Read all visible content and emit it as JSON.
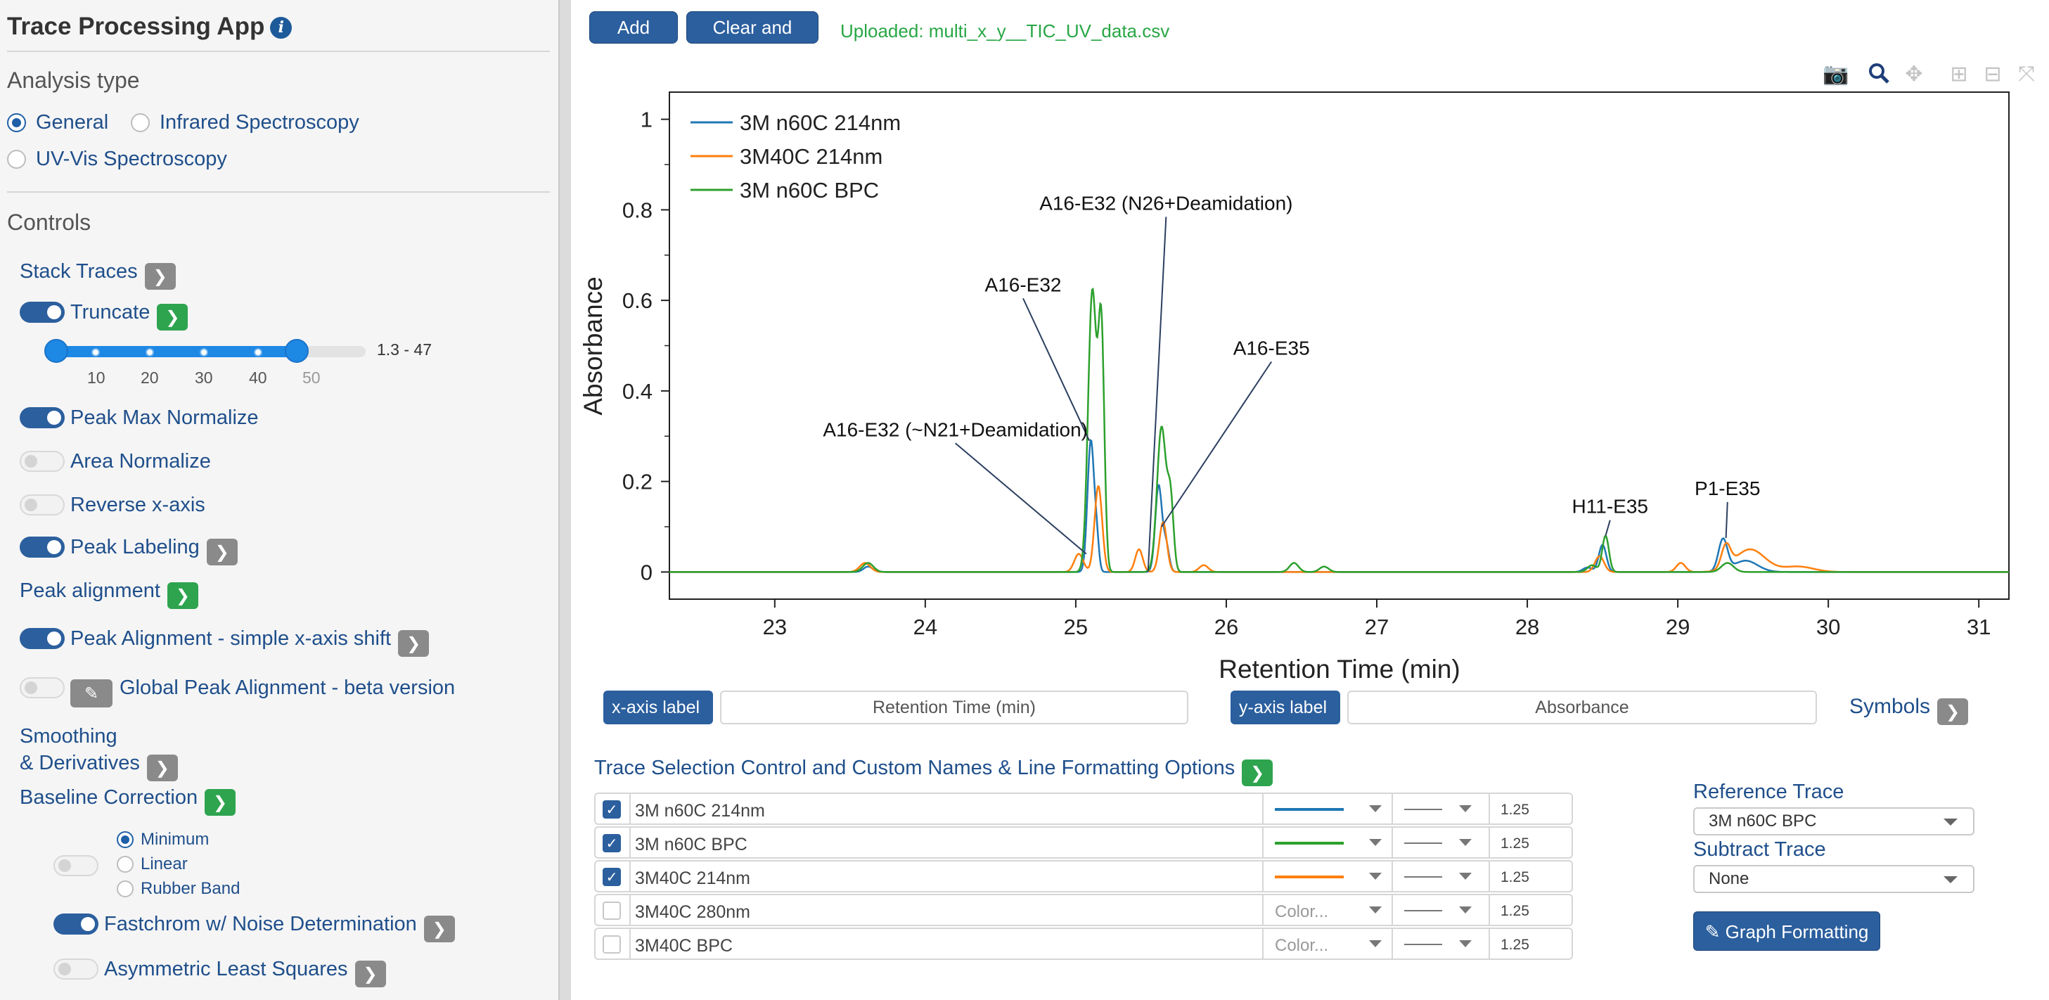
{
  "sidebar": {
    "title": "Trace Processing App",
    "analysis_type_heading": "Analysis type",
    "analysis_types": [
      "General",
      "Infrared Spectroscopy",
      "UV-Vis Spectroscopy"
    ],
    "analysis_selected": "General",
    "controls_heading": "Controls",
    "stack_traces": "Stack Traces",
    "truncate": "Truncate",
    "truncate_range": {
      "min": 1.3,
      "max": 47,
      "scale_max": 50,
      "ticks": [
        "10",
        "20",
        "30",
        "40",
        "50"
      ]
    },
    "truncate_value": "1.3 - 47",
    "peak_max_normalize": "Peak Max Normalize",
    "area_normalize": "Area Normalize",
    "reverse_x_axis": "Reverse x-axis",
    "peak_labeling": "Peak Labeling",
    "peak_alignment": "Peak alignment",
    "peak_alignment_simple": "Peak Alignment - simple x-axis shift",
    "global_peak_alignment": "Global Peak Alignment - beta version",
    "smoothing_line1": "Smoothing",
    "smoothing_line2": "& Derivatives",
    "baseline_correction": "Baseline Correction",
    "baseline_options": [
      "Minimum",
      "Linear",
      "Rubber Band"
    ],
    "baseline_selected": "Minimum",
    "fastchrom": "Fastchrom w/ Noise Determination",
    "asymmetric_least_squares": "Asymmetric Least Squares",
    "toggles": {
      "truncate": true,
      "peak_max_normalize": true,
      "area_normalize": false,
      "reverse_x_axis": false,
      "peak_labeling": true,
      "peak_alignment_simple": true,
      "global_peak_alignment": false,
      "baseline": false,
      "fastchrom": true,
      "asymmetric_least_squares": false
    }
  },
  "topbar": {
    "add_files": "Add File(s)",
    "clear_reset": "Clear and Reset",
    "upload_status": "Uploaded: multi_x_y__TIC_UV_data.csv"
  },
  "modebar": [
    "camera-icon",
    "zoom-icon",
    "pan-icon",
    "zoom-in-icon",
    "zoom-out-icon",
    "autoscale-icon"
  ],
  "chart_data": {
    "type": "line",
    "xlabel": "Retention Time (min)",
    "ylabel": "Absorbance",
    "xlim": [
      22.3,
      31.2
    ],
    "ylim": [
      -0.06,
      1.06
    ],
    "x_ticks": [
      23,
      24,
      25,
      26,
      27,
      28,
      29,
      30,
      31
    ],
    "y_ticks": [
      0,
      0.2,
      0.4,
      0.6,
      0.8,
      1
    ],
    "y_tick_labels": [
      "0",
      "0.2",
      "0.4",
      "0.6",
      "0.8",
      "1"
    ],
    "grid": false,
    "legend_position": "top-left",
    "series": [
      {
        "name": "3M n60C 214nm",
        "color": "#1f77b4",
        "peaks": [
          [
            23.62,
            0.012,
            0.03
          ],
          [
            25.1,
            0.29,
            0.022
          ],
          [
            25.14,
            0.06,
            0.015
          ],
          [
            25.55,
            0.19,
            0.022
          ],
          [
            25.6,
            0.06,
            0.02
          ],
          [
            28.5,
            0.06,
            0.025
          ],
          [
            28.4,
            0.01,
            0.03
          ],
          [
            29.3,
            0.07,
            0.03
          ],
          [
            29.45,
            0.025,
            0.08
          ]
        ]
      },
      {
        "name": "3M40C 214nm",
        "color": "#ff7f0e",
        "peaks": [
          [
            23.6,
            0.02,
            0.035
          ],
          [
            25.02,
            0.04,
            0.03
          ],
          [
            25.15,
            0.19,
            0.025
          ],
          [
            25.42,
            0.05,
            0.025
          ],
          [
            25.58,
            0.11,
            0.025
          ],
          [
            25.85,
            0.015,
            0.03
          ],
          [
            28.48,
            0.035,
            0.03
          ],
          [
            29.02,
            0.02,
            0.03
          ],
          [
            29.32,
            0.05,
            0.03
          ],
          [
            29.48,
            0.05,
            0.1
          ],
          [
            29.8,
            0.012,
            0.1
          ]
        ]
      },
      {
        "name": "3M n60C BPC",
        "color": "#2ca02c",
        "peaks": [
          [
            23.62,
            0.02,
            0.035
          ],
          [
            25.11,
            0.62,
            0.028
          ],
          [
            25.17,
            0.52,
            0.02
          ],
          [
            25.57,
            0.32,
            0.03
          ],
          [
            25.63,
            0.15,
            0.02
          ],
          [
            26.45,
            0.02,
            0.03
          ],
          [
            26.65,
            0.012,
            0.03
          ],
          [
            28.52,
            0.08,
            0.022
          ],
          [
            28.43,
            0.015,
            0.03
          ],
          [
            29.33,
            0.02,
            0.04
          ]
        ]
      }
    ],
    "annotations": [
      {
        "text": "A16-E32 (N26+Deamidation)",
        "x": 25.6,
        "y": 0.8,
        "ax": 25.48,
        "ay": 0
      },
      {
        "text": "A16-E32",
        "x": 24.65,
        "y": 0.62,
        "ax": 25.09,
        "ay": 0.29
      },
      {
        "text": "A16-E35",
        "x": 26.3,
        "y": 0.48,
        "ax": 25.57,
        "ay": 0.1
      },
      {
        "text": "A16-E32 (~N21+Deamidation)",
        "x": 24.2,
        "y": 0.3,
        "ax": 25.07,
        "ay": 0.04
      },
      {
        "text": "H11-E35",
        "x": 28.55,
        "y": 0.13,
        "ax": 28.52,
        "ay": 0.08
      },
      {
        "text": "P1-E35",
        "x": 29.33,
        "y": 0.17,
        "ax": 29.32,
        "ay": 0.075
      }
    ]
  },
  "axis_controls": {
    "x_label_btn": "x-axis label",
    "x_label_value": "Retention Time (min)",
    "y_label_btn": "y-axis label",
    "y_label_value": "Absorbance",
    "symbols": "Symbols"
  },
  "trace_section": {
    "heading": "Trace Selection Control and Custom Names & Line Formatting Options",
    "color_placeholder": "Color...",
    "rows": [
      {
        "name": "3M n60C 214nm",
        "checked": true,
        "color": "#1f77b4",
        "width": "1.25"
      },
      {
        "name": "3M n60C BPC",
        "checked": true,
        "color": "#2ca02c",
        "width": "1.25"
      },
      {
        "name": "3M40C 214nm",
        "checked": true,
        "color": "#ff7f0e",
        "width": "1.25"
      },
      {
        "name": "3M40C 280nm",
        "checked": false,
        "color": "",
        "width": "1.25"
      },
      {
        "name": "3M40C BPC",
        "checked": false,
        "color": "",
        "width": "1.25"
      }
    ]
  },
  "reference": {
    "reference_label": "Reference Trace",
    "reference_value": "3M n60C BPC",
    "subtract_label": "Subtract Trace",
    "subtract_value": "None",
    "graph_formatting": "Graph Formatting"
  }
}
